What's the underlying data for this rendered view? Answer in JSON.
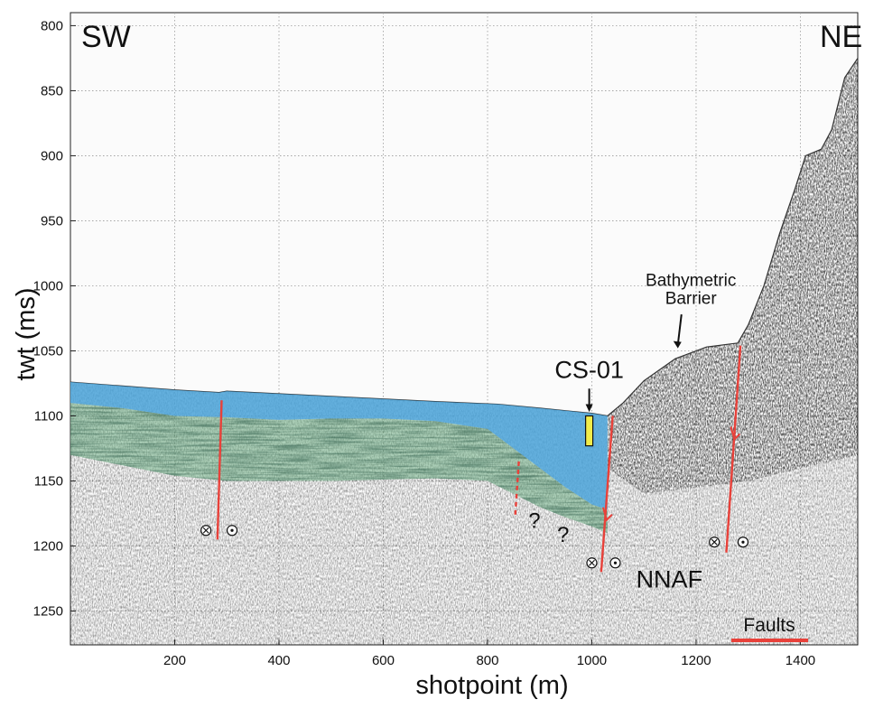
{
  "chart_data": {
    "type": "seismic-profile",
    "xlabel": "shotpoint (m)",
    "ylabel": "twt (ms)",
    "xlim": [
      0,
      1510
    ],
    "ylim": [
      1276,
      790
    ],
    "y_inverted": true,
    "x_ticks": [
      200,
      400,
      600,
      800,
      1000,
      1200,
      1400
    ],
    "y_ticks": [
      800,
      850,
      900,
      950,
      1000,
      1050,
      1100,
      1150,
      1200,
      1250
    ],
    "grid": true,
    "corner_labels": {
      "left": "SW",
      "right": "NE"
    },
    "seafloor": [
      [
        0,
        1074
      ],
      [
        100,
        1077
      ],
      [
        200,
        1080
      ],
      [
        285,
        1082
      ],
      [
        300,
        1081
      ],
      [
        400,
        1083
      ],
      [
        600,
        1087
      ],
      [
        700,
        1089
      ],
      [
        820,
        1091
      ],
      [
        900,
        1094
      ],
      [
        1000,
        1098
      ],
      [
        1030,
        1100
      ],
      [
        1060,
        1090
      ],
      [
        1100,
        1073
      ],
      [
        1160,
        1056
      ],
      [
        1220,
        1047
      ],
      [
        1280,
        1044
      ],
      [
        1300,
        1030
      ],
      [
        1330,
        1000
      ],
      [
        1360,
        960
      ],
      [
        1390,
        925
      ],
      [
        1410,
        900
      ],
      [
        1440,
        895
      ],
      [
        1460,
        880
      ],
      [
        1485,
        840
      ],
      [
        1510,
        825
      ]
    ],
    "blue_unit_base": [
      [
        0,
        1090
      ],
      [
        100,
        1094
      ],
      [
        200,
        1100
      ],
      [
        300,
        1101
      ],
      [
        400,
        1103
      ],
      [
        500,
        1102
      ],
      [
        600,
        1102
      ],
      [
        700,
        1104
      ],
      [
        800,
        1110
      ],
      [
        850,
        1125
      ],
      [
        900,
        1140
      ],
      [
        950,
        1155
      ],
      [
        1000,
        1168
      ],
      [
        1030,
        1172
      ]
    ],
    "green_unit_base": [
      [
        0,
        1130
      ],
      [
        100,
        1138
      ],
      [
        200,
        1146
      ],
      [
        300,
        1150
      ],
      [
        500,
        1150
      ],
      [
        700,
        1148
      ],
      [
        800,
        1150
      ],
      [
        850,
        1160
      ],
      [
        900,
        1170
      ],
      [
        950,
        1178
      ],
      [
        1000,
        1185
      ],
      [
        1030,
        1190
      ]
    ],
    "core_site": {
      "label": "CS-01",
      "x": 995,
      "top": 1100,
      "bottom": 1123
    },
    "bathymetric_barrier": {
      "label_line1": "Bathymetric",
      "label_line2": "Barrier",
      "x": 1165,
      "y_arrow_end": 1048
    },
    "nnaf_label": "NNAF",
    "question_marks": [
      {
        "text": "?",
        "x": 890,
        "y": 1186
      },
      {
        "text": "?",
        "x": 945,
        "y": 1197
      }
    ],
    "faults": [
      {
        "x1": 290,
        "y1": 1088,
        "x2": 282,
        "y2": 1195,
        "dashed": false
      },
      {
        "x1": 860,
        "y1": 1135,
        "x2": 853,
        "y2": 1177,
        "dashed": true
      },
      {
        "x1": 1040,
        "y1": 1100,
        "x2": 1018,
        "y2": 1220,
        "dashed": false
      },
      {
        "x1": 1285,
        "y1": 1046,
        "x2": 1258,
        "y2": 1205,
        "dashed": false
      }
    ],
    "fault_symbols": [
      {
        "type": "x",
        "x": 260,
        "y": 1188
      },
      {
        "type": "dot",
        "x": 310,
        "y": 1188
      },
      {
        "type": "x",
        "x": 1000,
        "y": 1213
      },
      {
        "type": "dot",
        "x": 1045,
        "y": 1213
      },
      {
        "type": "x",
        "x": 1235,
        "y": 1197
      },
      {
        "type": "dot",
        "x": 1290,
        "y": 1197
      }
    ],
    "legend": {
      "label": "Faults",
      "color": "#e8413a",
      "placement": "bottom-right"
    },
    "colors": {
      "blue_unit": "#4aa3d9",
      "green_unit": "#6fae85",
      "fault": "#e8413a",
      "core": "#f1ec4a"
    }
  }
}
